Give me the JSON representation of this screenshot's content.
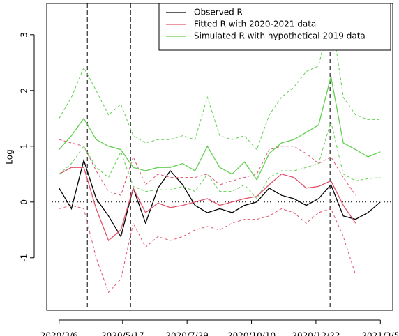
{
  "chart_data": {
    "type": "line",
    "ylabel": "Log",
    "x": [
      "2020/3/6",
      "2020/3/20",
      "2020/4/3",
      "2020/4/17",
      "2020/5/1",
      "2020/5/15",
      "2020/5/29",
      "2020/6/12",
      "2020/6/26",
      "2020/7/10",
      "2020/7/24",
      "2020/8/7",
      "2020/8/21",
      "2020/9/4",
      "2020/9/18",
      "2020/10/2",
      "2020/10/16",
      "2020/10/30",
      "2020/11/13",
      "2020/11/27",
      "2020/12/11",
      "2020/12/25",
      "2021/1/8",
      "2021/1/22",
      "2021/2/5",
      "2021/2/19",
      "2021/3/5"
    ],
    "series": [
      {
        "name": "Observed R",
        "color": "#000000",
        "dash": false,
        "values": [
          0.25,
          -0.12,
          0.75,
          0.06,
          -0.25,
          -0.62,
          0.25,
          -0.38,
          0.25,
          0.56,
          0.31,
          -0.06,
          -0.19,
          -0.12,
          -0.19,
          -0.06,
          0,
          0.25,
          0.12,
          0.06,
          -0.06,
          0.06,
          0.31,
          -0.25,
          -0.31,
          -0.19,
          0
        ]
      },
      {
        "name": "Fitted R with 2020-2021 data",
        "color": "#DF536B",
        "dash": false,
        "values": [
          0.5,
          0.62,
          0.62,
          -0.12,
          -0.69,
          -0.5,
          0.25,
          -0.19,
          -0.02,
          -0.1,
          -0.06,
          0,
          0.06,
          -0.06,
          0,
          0.06,
          0.1,
          0.31,
          0.5,
          0.44,
          0.25,
          0.28,
          0.38,
          -0.06,
          -0.38,
          null,
          null
        ]
      },
      {
        "color": "#DF536B",
        "dash": true,
        "values": [
          1.12,
          1.06,
          1.0,
          0.56,
          0.19,
          0.12,
          0.81,
          0.31,
          0.5,
          0.44,
          0.44,
          0.44,
          0.5,
          0.31,
          0.38,
          0.44,
          0.5,
          0.94,
          1.0,
          1.0,
          0.87,
          0.69,
          0.81,
          0.44,
          0.12,
          null,
          null
        ]
      },
      {
        "color": "#DF536B",
        "dash": true,
        "values": [
          -0.12,
          -0.06,
          -0.12,
          -1.0,
          -1.62,
          -1.38,
          -0.38,
          -0.81,
          -0.62,
          -0.69,
          -0.62,
          -0.5,
          -0.44,
          -0.5,
          -0.38,
          -0.31,
          -0.31,
          -0.25,
          -0.12,
          -0.19,
          -0.38,
          -0.19,
          -0.12,
          -0.62,
          -1.31,
          null,
          null
        ]
      },
      {
        "name": "Simulated R with hypothetical 2019 data",
        "color": "#61D04F",
        "dash": false,
        "values": [
          0.94,
          1.19,
          1.5,
          1.12,
          1.0,
          0.94,
          0.62,
          0.56,
          0.62,
          0.62,
          0.69,
          0.56,
          1.0,
          0.62,
          0.5,
          0.72,
          0.4,
          0.87,
          1.06,
          1.12,
          1.25,
          1.38,
          2.25,
          1.06,
          0.94,
          0.81,
          0.9
        ]
      },
      {
        "color": "#61D04F",
        "dash": true,
        "values": [
          1.5,
          1.88,
          2.41,
          2.0,
          1.56,
          1.75,
          1.19,
          1.06,
          1.12,
          1.12,
          1.19,
          1.12,
          1.88,
          1.19,
          1.12,
          1.19,
          0.94,
          1.56,
          1.88,
          2.06,
          2.34,
          2.44,
          3.38,
          1.88,
          1.56,
          1.48,
          1.48
        ]
      },
      {
        "color": "#61D04F",
        "dash": true,
        "values": [
          0.5,
          0.69,
          1.0,
          0.62,
          0.44,
          0.9,
          0.28,
          0.19,
          0.22,
          0.22,
          0.28,
          0.19,
          0.5,
          0.19,
          0.19,
          0.31,
          0.06,
          0.44,
          0.56,
          0.56,
          0.62,
          0.69,
          1.44,
          0.5,
          0.38,
          0.42,
          0.44
        ]
      }
    ],
    "xlim": [
      "2020/2/21",
      "2021/3/19"
    ],
    "xticks": [
      "2020/3/6",
      "2020/5/17",
      "2020/7/29",
      "2020/10/10",
      "2020/12/22",
      "2021/3/5"
    ],
    "ylim": [
      -1.94,
      3.56
    ],
    "yticks": [
      -1,
      0,
      1,
      2,
      3
    ],
    "vlines": [
      "2020/4/7",
      "2020/5/26",
      "2021/1/7"
    ],
    "hline": 0,
    "legend": "topright"
  }
}
